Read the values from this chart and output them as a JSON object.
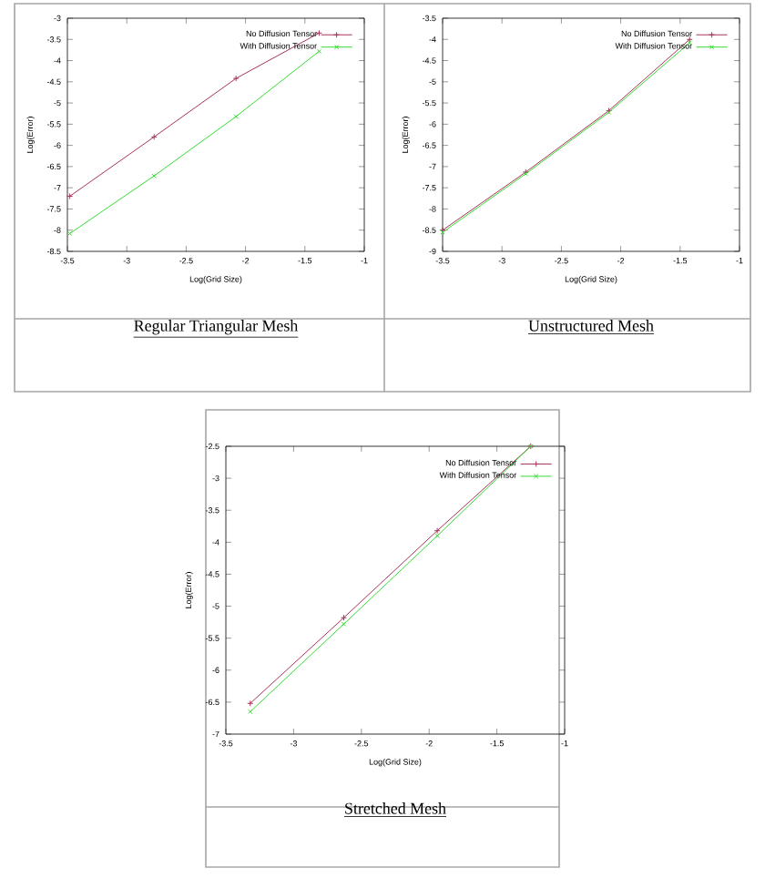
{
  "chart_data": [
    {
      "type": "line",
      "title": "Regular Triangular Mesh",
      "xlabel": "Log(Grid Size)",
      "ylabel": "Log(Error)",
      "xlim": [
        -3.5,
        -1
      ],
      "ylim": [
        -8.5,
        -3
      ],
      "xticks": [
        -3.5,
        -3,
        -2.5,
        -2,
        -1.5,
        -1
      ],
      "yticks": [
        -8.5,
        -8,
        -7.5,
        -7,
        -6.5,
        -6,
        -5.5,
        -5,
        -4.5,
        -4,
        -3.5,
        -3
      ],
      "legend": "top right",
      "marker": "cross",
      "x": [
        -3.48,
        -2.77,
        -2.08,
        -1.38
      ],
      "series": [
        {
          "name": "No Diffusion Tensor",
          "color": "#a8325a",
          "values": [
            -7.2,
            -5.8,
            -4.42,
            -3.35
          ]
        },
        {
          "name": "With Diffusion Tensor",
          "color": "#33dd33",
          "values": [
            -8.08,
            -6.72,
            -5.32,
            -3.78
          ]
        }
      ]
    },
    {
      "type": "line",
      "title": "Unstructured Mesh",
      "xlabel": "Log(Grid Size)",
      "ylabel": "Log(Error)",
      "xlim": [
        -3.5,
        -1
      ],
      "ylim": [
        -9,
        -3.5
      ],
      "xticks": [
        -3.5,
        -3,
        -2.5,
        -2,
        -1.5,
        -1
      ],
      "yticks": [
        -9,
        -8.5,
        -8,
        -7.5,
        -7,
        -6.5,
        -6,
        -5.5,
        -5,
        -4.5,
        -4,
        -3.5
      ],
      "legend": "top right",
      "marker": "cross",
      "x": [
        -3.5,
        -2.8,
        -2.1,
        -1.42
      ],
      "series": [
        {
          "name": "No Diffusion Tensor",
          "color": "#a8325a",
          "values": [
            -8.5,
            -7.13,
            -5.68,
            -4.0
          ]
        },
        {
          "name": "With Diffusion Tensor",
          "color": "#33dd33",
          "values": [
            -8.55,
            -7.17,
            -5.72,
            -4.08
          ]
        }
      ]
    },
    {
      "type": "line",
      "title": "Stretched Mesh",
      "xlabel": "Log(Grid Size)",
      "ylabel": "Log(Error)",
      "xlim": [
        -3.5,
        -1
      ],
      "ylim": [
        -7,
        -2.5
      ],
      "xticks": [
        -3.5,
        -3,
        -2.5,
        -2,
        -1.5,
        -1
      ],
      "yticks": [
        -7,
        -6.5,
        -6,
        -5.5,
        -5,
        -4.5,
        -4,
        -3.5,
        -3,
        -2.5
      ],
      "legend": "top right",
      "marker": "cross",
      "x": [
        -3.32,
        -2.63,
        -1.94,
        -1.25
      ],
      "series": [
        {
          "name": "No Diffusion Tensor",
          "color": "#a8325a",
          "values": [
            -6.52,
            -5.18,
            -3.82,
            -2.5
          ]
        },
        {
          "name": "With Diffusion Tensor",
          "color": "#33dd33",
          "values": [
            -6.65,
            -5.28,
            -3.9,
            -2.5
          ]
        }
      ]
    }
  ]
}
